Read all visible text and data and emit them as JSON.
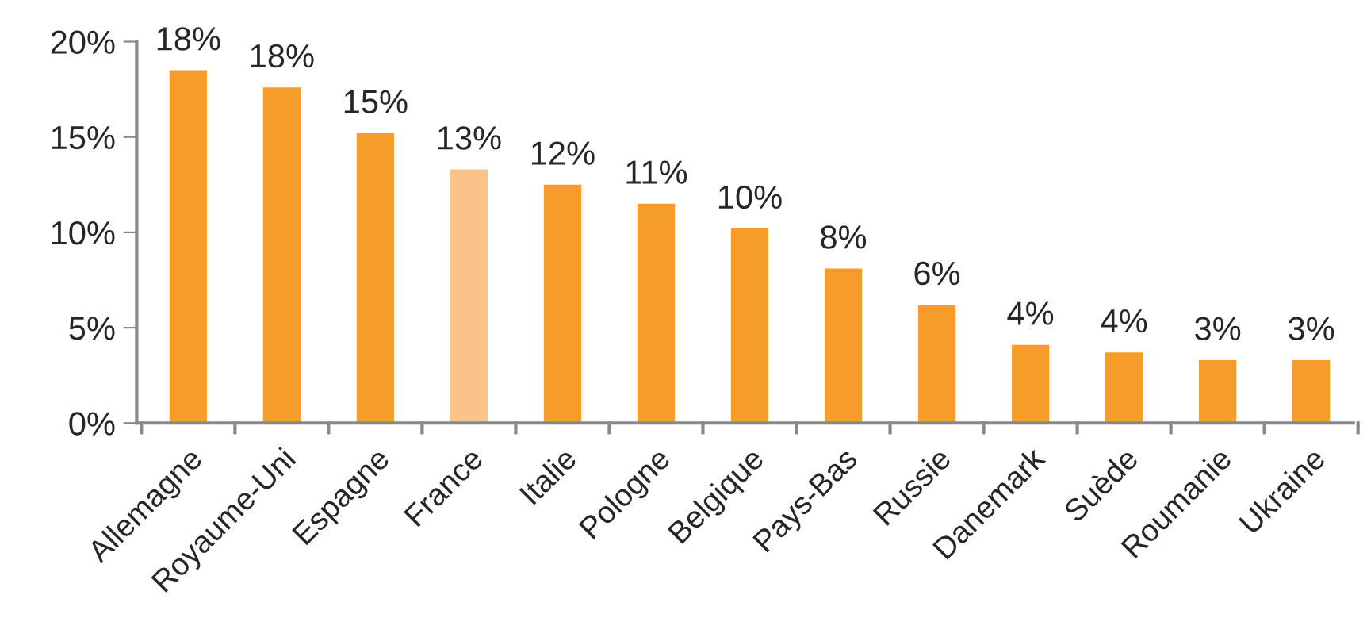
{
  "chart_data": {
    "type": "bar",
    "categories": [
      "Allemagne",
      "Royaume-Uni",
      "Espagne",
      "France",
      "Italie",
      "Pologne",
      "Belgique",
      "Pays-Bas",
      "Russie",
      "Danemark",
      "Suède",
      "Roumanie",
      "Ukraine"
    ],
    "values": [
      18.5,
      17.6,
      15.2,
      13.3,
      12.5,
      11.5,
      10.2,
      8.1,
      6.2,
      4.1,
      3.7,
      3.3,
      3.3
    ],
    "value_labels": [
      "18%",
      "18%",
      "15%",
      "13%",
      "12%",
      "11%",
      "10%",
      "8%",
      "6%",
      "4%",
      "4%",
      "3%",
      "3%"
    ],
    "colors": [
      "#f59c2b",
      "#f59c2b",
      "#f59c2b",
      "#f9c38a",
      "#f59c2b",
      "#f59c2b",
      "#f59c2b",
      "#f59c2b",
      "#f59c2b",
      "#f59c2b",
      "#f59c2b",
      "#f59c2b",
      "#f59c2b"
    ],
    "ylim": [
      0,
      20
    ],
    "yticks": [
      {
        "value": 0,
        "label": "0%"
      },
      {
        "value": 5,
        "label": "5%"
      },
      {
        "value": 10,
        "label": "10%"
      },
      {
        "value": 15,
        "label": "15%"
      },
      {
        "value": 20,
        "label": "20%"
      }
    ],
    "grid": false,
    "legend": false
  }
}
